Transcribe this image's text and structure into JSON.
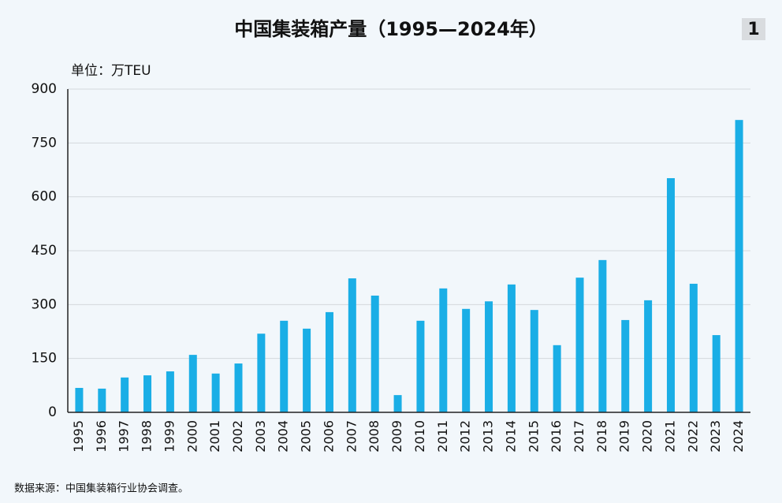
{
  "chart_data": {
    "type": "bar",
    "title": "中国集装箱产量（1995—2024年）",
    "badge": "1",
    "unit_label": "单位：万TEU",
    "source": "数据来源：中国集装箱行业协会调查。",
    "categories": [
      "1995",
      "1996",
      "1997",
      "1998",
      "1999",
      "2000",
      "2001",
      "2002",
      "2003",
      "2004",
      "2005",
      "2006",
      "2007",
      "2008",
      "2009",
      "2010",
      "2011",
      "2012",
      "2013",
      "2014",
      "2015",
      "2016",
      "2017",
      "2018",
      "2019",
      "2020",
      "2021",
      "2022",
      "2023",
      "2024"
    ],
    "values": [
      68,
      66,
      97,
      103,
      114,
      160,
      108,
      136,
      219,
      255,
      233,
      279,
      373,
      325,
      48,
      255,
      345,
      288,
      309,
      356,
      285,
      187,
      375,
      424,
      257,
      312,
      652,
      358,
      215,
      814
    ],
    "color": "#1aaee6",
    "ylim": [
      0,
      900
    ],
    "yticks": [
      0,
      150,
      300,
      450,
      600,
      750,
      900
    ],
    "grid": true
  }
}
